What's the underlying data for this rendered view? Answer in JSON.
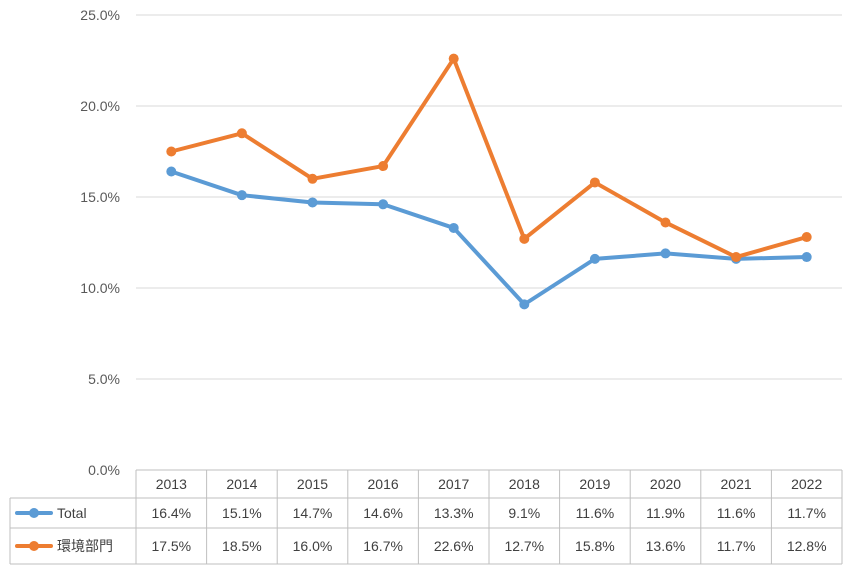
{
  "chart_data": {
    "type": "line",
    "title": "",
    "xlabel": "",
    "ylabel": "",
    "categories": [
      "2013",
      "2014",
      "2015",
      "2016",
      "2017",
      "2018",
      "2019",
      "2020",
      "2021",
      "2022"
    ],
    "ylim": [
      0,
      25
    ],
    "y_ticks": [
      "0.0%",
      "5.0%",
      "10.0%",
      "15.0%",
      "20.0%",
      "25.0%"
    ],
    "y_tick_values": [
      0,
      5,
      10,
      15,
      20,
      25
    ],
    "grid": true,
    "legend": "data-table",
    "series": [
      {
        "name": "Total",
        "color": "#5b9bd5",
        "values": [
          16.4,
          15.1,
          14.7,
          14.6,
          13.3,
          9.1,
          11.6,
          11.9,
          11.6,
          11.7
        ],
        "labels": [
          "16.4%",
          "15.1%",
          "14.7%",
          "14.6%",
          "13.3%",
          "9.1%",
          "11.6%",
          "11.9%",
          "11.6%",
          "11.7%"
        ]
      },
      {
        "name": "環境部門",
        "color": "#ed7d31",
        "values": [
          17.5,
          18.5,
          16.0,
          16.7,
          22.6,
          12.7,
          15.8,
          13.6,
          11.7,
          12.8
        ],
        "labels": [
          "17.5%",
          "18.5%",
          "16.0%",
          "16.7%",
          "22.6%",
          "12.7%",
          "15.8%",
          "13.6%",
          "11.7%",
          "12.8%"
        ]
      }
    ]
  }
}
